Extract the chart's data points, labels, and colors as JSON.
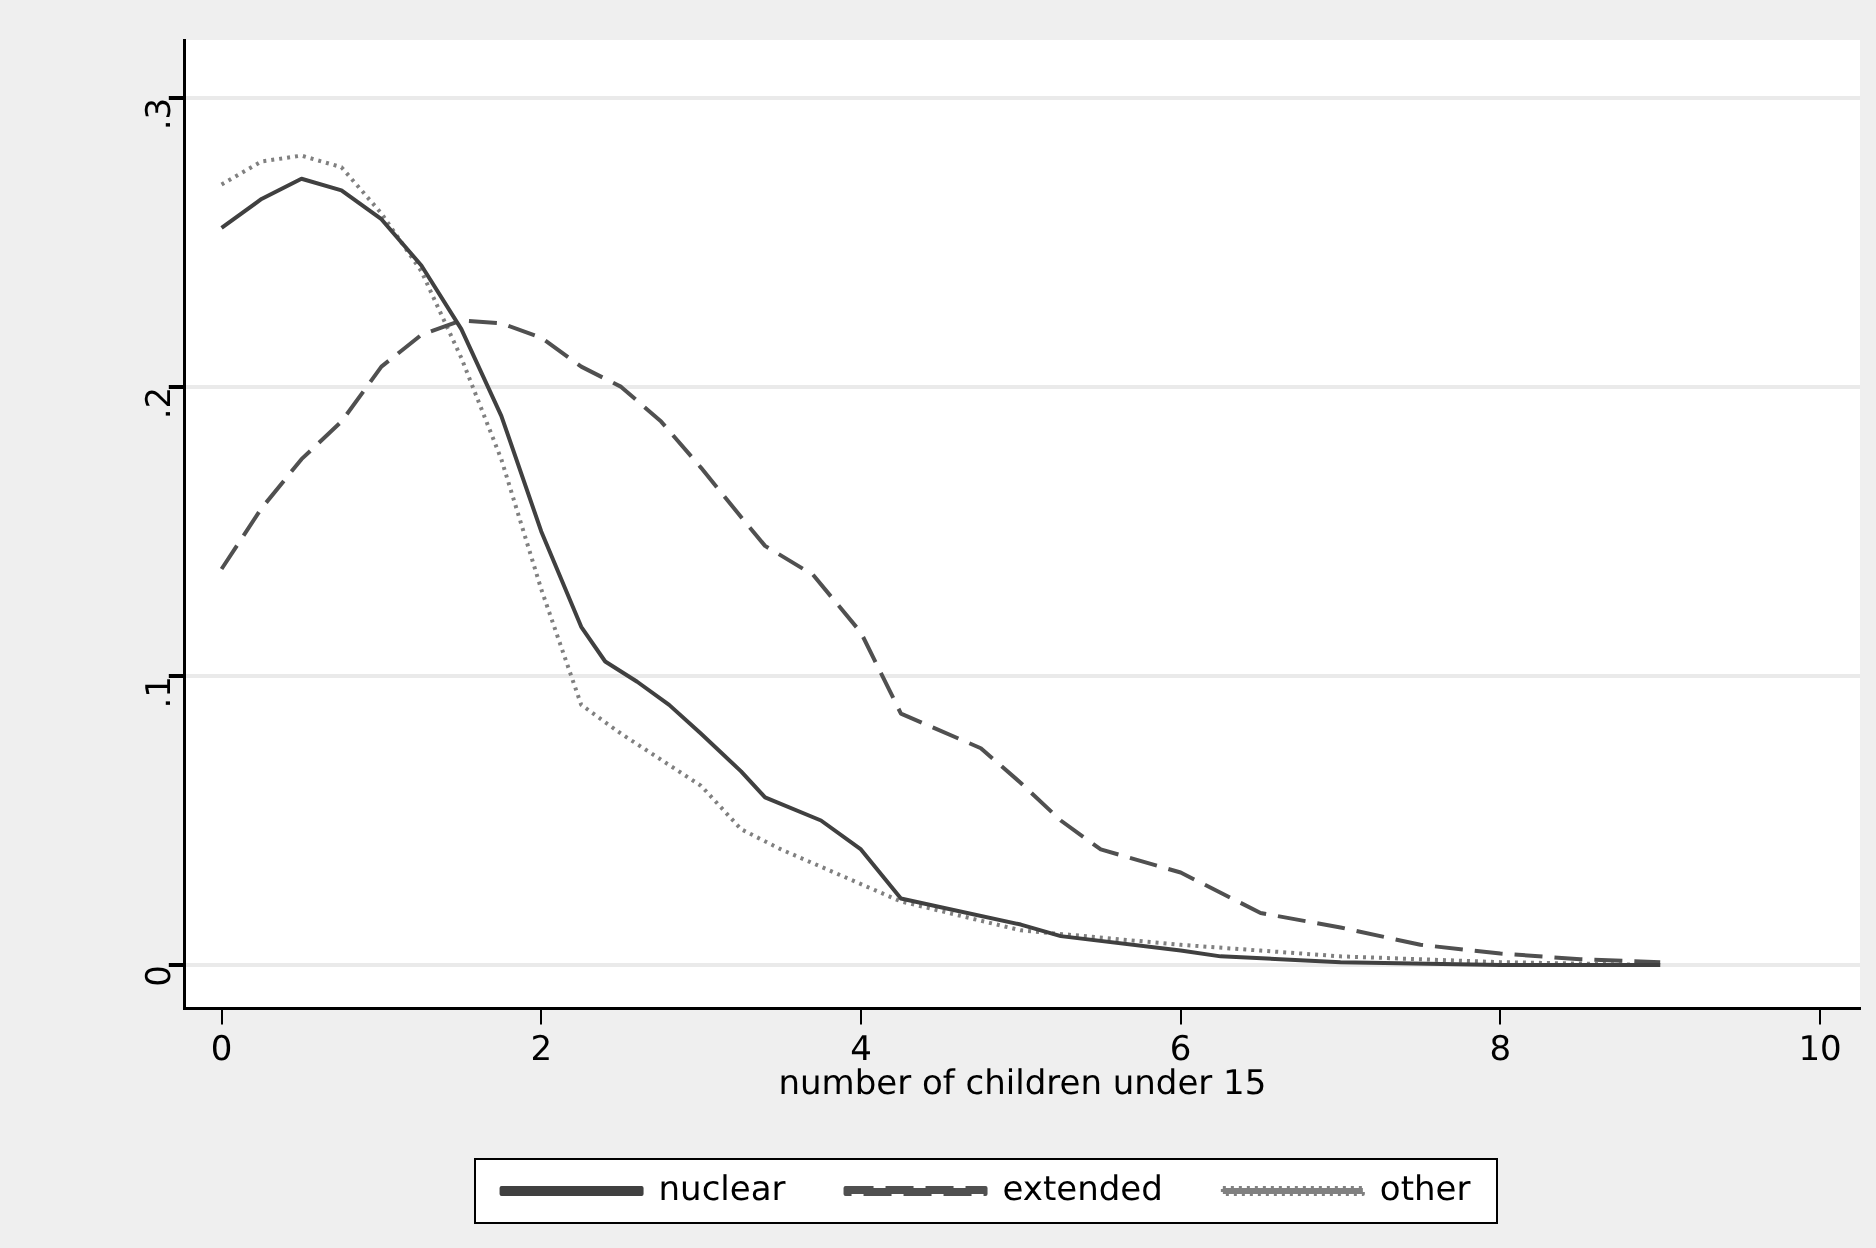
{
  "chart_data": {
    "type": "line",
    "xlabel": "number of children under 15",
    "xlim": [
      -0.23,
      10.25
    ],
    "xticks": [
      0,
      2,
      4,
      6,
      8,
      10
    ],
    "ylim": [
      -0.015,
      0.32
    ],
    "yticks": [
      0,
      {
        "value": 0.1,
        "label": ".1"
      },
      {
        "value": 0.2,
        "label": ".2"
      },
      {
        "value": 0.3,
        "label": ".3"
      }
    ],
    "grid": "y",
    "legend": "bottom",
    "marker": "none",
    "series": [
      {
        "name": "nuclear",
        "color": "#404040",
        "line_style": "solid",
        "x": [
          0,
          0.25,
          0.5,
          0.75,
          1,
          1.25,
          1.5,
          1.75,
          2,
          2.25,
          2.4,
          2.6,
          2.8,
          3,
          3.25,
          3.4,
          3.75,
          4,
          4.25,
          4.5,
          5,
          5.25,
          6,
          6.25,
          7,
          8,
          9
        ],
        "values": [
          0.255,
          0.265,
          0.272,
          0.268,
          0.258,
          0.242,
          0.22,
          0.19,
          0.15,
          0.117,
          0.105,
          0.098,
          0.09,
          0.08,
          0.067,
          0.058,
          0.05,
          0.04,
          0.023,
          0.02,
          0.014,
          0.01,
          0.005,
          0.003,
          0.001,
          0,
          0
        ]
      },
      {
        "name": "extended",
        "color": "#505050",
        "line_style": "dashed",
        "x": [
          0,
          0.25,
          0.5,
          0.75,
          1,
          1.25,
          1.5,
          1.75,
          2,
          2.25,
          2.5,
          2.75,
          3,
          3.25,
          3.4,
          3.7,
          4,
          4.25,
          4.75,
          5,
          5.25,
          5.5,
          6,
          6.25,
          6.5,
          7,
          7.5,
          8,
          8.5,
          9
        ],
        "values": [
          0.137,
          0.158,
          0.175,
          0.188,
          0.207,
          0.218,
          0.223,
          0.222,
          0.217,
          0.207,
          0.2,
          0.188,
          0.172,
          0.155,
          0.145,
          0.135,
          0.115,
          0.087,
          0.075,
          0.063,
          0.05,
          0.04,
          0.032,
          0.025,
          0.018,
          0.013,
          0.007,
          0.004,
          0.002,
          0.001
        ]
      },
      {
        "name": "other",
        "color": "#808080",
        "line_style": "dotted",
        "x": [
          0,
          0.25,
          0.5,
          0.75,
          1,
          1.25,
          1.5,
          1.75,
          2,
          2.25,
          2.5,
          3,
          3.25,
          3.5,
          4,
          4.25,
          5,
          6,
          6.5,
          7,
          8,
          9
        ],
        "values": [
          0.27,
          0.278,
          0.28,
          0.276,
          0.26,
          0.24,
          0.21,
          0.175,
          0.13,
          0.09,
          0.08,
          0.062,
          0.047,
          0.04,
          0.028,
          0.022,
          0.012,
          0.007,
          0.005,
          0.003,
          0.001,
          0
        ]
      }
    ]
  }
}
